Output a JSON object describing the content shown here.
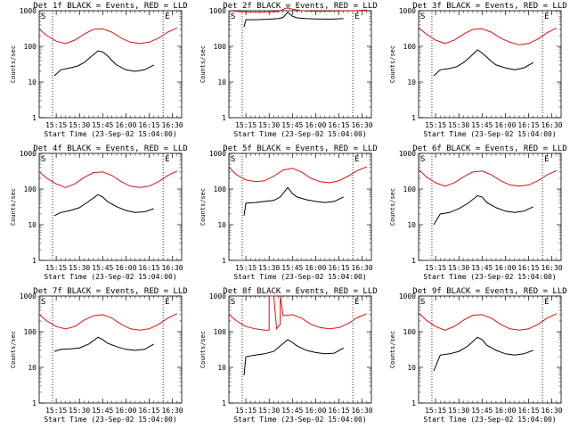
{
  "chart_data": [
    {
      "type": "line",
      "title": "Det 1f BLACK = Events, RED = LLD",
      "ylabel": "Counts/sec",
      "xlabel": "Start Time (23-Sep-02 15:04:00)",
      "x_ticks": [
        "15:15",
        "15:30",
        "15:45",
        "16:00",
        "16:15",
        "16:30"
      ],
      "y_ticks": [
        "1",
        "10",
        "100",
        "1000"
      ],
      "y_scale": "log",
      "ylim": [
        1,
        1000
      ],
      "markers": [
        "S",
        "E"
      ],
      "series": [
        {
          "name": "Events",
          "color": "#000000",
          "x": [
            15.23,
            15.3,
            15.4,
            15.48,
            15.55,
            15.62,
            15.7,
            15.75,
            15.8,
            15.85,
            15.9,
            16.0,
            16.1,
            16.2,
            16.3
          ],
          "y": [
            15,
            22,
            25,
            28,
            35,
            50,
            75,
            70,
            55,
            40,
            30,
            22,
            20,
            22,
            30
          ]
        },
        {
          "name": "LLD",
          "color": "#e01010",
          "x": [
            15.07,
            15.15,
            15.25,
            15.35,
            15.45,
            15.55,
            15.65,
            15.75,
            15.85,
            15.95,
            16.05,
            16.15,
            16.25,
            16.35,
            16.45,
            16.55
          ],
          "y": [
            300,
            200,
            140,
            120,
            150,
            220,
            300,
            310,
            250,
            170,
            130,
            120,
            130,
            170,
            250,
            330
          ]
        }
      ]
    },
    {
      "type": "line",
      "title": "Det 2f BLACK = Events, RED = LLD",
      "ylabel": "Counts/sec",
      "xlabel": "Start Time (23-Sep-02 15:04:00)",
      "x_ticks": [
        "15:15",
        "15:30",
        "15:45",
        "16:00",
        "16:15",
        "16:30"
      ],
      "y_ticks": [
        "1",
        "10",
        "100",
        "1000"
      ],
      "y_scale": "log",
      "ylim": [
        1,
        1000
      ],
      "markers": [
        "S",
        "E"
      ],
      "series": [
        {
          "name": "Events",
          "color": "#000000",
          "x": [
            15.23,
            15.25,
            15.35,
            15.5,
            15.6,
            15.65,
            15.7,
            15.75,
            15.8,
            15.9,
            16.0,
            16.15,
            16.3
          ],
          "y": [
            350,
            560,
            560,
            580,
            600,
            650,
            900,
            700,
            630,
            600,
            590,
            580,
            600
          ]
        },
        {
          "name": "LLD",
          "color": "#e01010",
          "x": [
            15.07,
            15.2,
            15.35,
            15.5,
            15.6,
            15.67,
            15.7,
            15.75,
            15.85,
            16.0,
            16.2,
            16.4,
            16.55
          ],
          "y": [
            1000,
            930,
            900,
            920,
            950,
            1150,
            1200,
            1100,
            1000,
            960,
            980,
            1000,
            1050
          ]
        }
      ]
    },
    {
      "type": "line",
      "title": "Det 3f BLACK = Events, RED = LLD",
      "ylabel": "Counts/sec",
      "xlabel": "Start Time (23-Sep-02 15:04:00)",
      "x_ticks": [
        "15:15",
        "15:30",
        "15:45",
        "16:00",
        "16:15",
        "16:30"
      ],
      "y_ticks": [
        "1",
        "10",
        "100",
        "1000"
      ],
      "y_scale": "log",
      "ylim": [
        1,
        1000
      ],
      "markers": [
        "S",
        "E"
      ],
      "series": [
        {
          "name": "Events",
          "color": "#000000",
          "x": [
            15.23,
            15.3,
            15.4,
            15.48,
            15.55,
            15.62,
            15.7,
            15.75,
            15.8,
            15.85,
            15.9,
            16.0,
            16.1,
            16.2,
            16.3
          ],
          "y": [
            15,
            22,
            24,
            27,
            35,
            50,
            80,
            65,
            50,
            38,
            30,
            25,
            22,
            25,
            35
          ]
        },
        {
          "name": "LLD",
          "color": "#e01010",
          "x": [
            15.07,
            15.15,
            15.25,
            15.35,
            15.45,
            15.55,
            15.65,
            15.75,
            15.85,
            15.95,
            16.05,
            16.15,
            16.25,
            16.35,
            16.45,
            16.55
          ],
          "y": [
            330,
            220,
            150,
            120,
            150,
            220,
            300,
            310,
            250,
            170,
            130,
            110,
            120,
            160,
            240,
            330
          ]
        }
      ]
    },
    {
      "type": "line",
      "title": "Det 4f BLACK = Events, RED = LLD",
      "ylabel": "Counts/sec",
      "xlabel": "Start Time (23-Sep-02 15:04:00)",
      "x_ticks": [
        "15:15",
        "15:30",
        "15:45",
        "16:00",
        "16:15",
        "16:30"
      ],
      "y_ticks": [
        "1",
        "10",
        "100",
        "1000"
      ],
      "y_scale": "log",
      "ylim": [
        1,
        1000
      ],
      "markers": [
        "S",
        "E"
      ],
      "series": [
        {
          "name": "Events",
          "color": "#000000",
          "x": [
            15.23,
            15.3,
            15.4,
            15.5,
            15.6,
            15.7,
            15.75,
            15.8,
            15.9,
            16.0,
            16.1,
            16.2,
            16.3
          ],
          "y": [
            18,
            22,
            25,
            30,
            45,
            70,
            60,
            45,
            32,
            25,
            22,
            23,
            28
          ]
        },
        {
          "name": "LLD",
          "color": "#e01010",
          "x": [
            15.07,
            15.15,
            15.25,
            15.35,
            15.45,
            15.55,
            15.65,
            15.75,
            15.85,
            15.95,
            16.05,
            16.15,
            16.25,
            16.35,
            16.45,
            16.55
          ],
          "y": [
            300,
            200,
            140,
            110,
            140,
            210,
            290,
            300,
            240,
            160,
            120,
            110,
            120,
            160,
            240,
            320
          ]
        }
      ]
    },
    {
      "type": "line",
      "title": "Det 5f BLACK = Events, RED = LLD",
      "ylabel": "Counts/sec",
      "xlabel": "Start Time (23-Sep-02 15:04:00)",
      "x_ticks": [
        "15:15",
        "15:30",
        "15:45",
        "16:00",
        "16:15",
        "16:30"
      ],
      "y_ticks": [
        "1",
        "10",
        "100",
        "1000"
      ],
      "y_scale": "log",
      "ylim": [
        1,
        1000
      ],
      "markers": [
        "S",
        "E"
      ],
      "series": [
        {
          "name": "Events",
          "color": "#000000",
          "x": [
            15.23,
            15.25,
            15.35,
            15.45,
            15.55,
            15.62,
            15.7,
            15.75,
            15.8,
            15.9,
            16.0,
            16.1,
            16.2,
            16.3
          ],
          "y": [
            18,
            40,
            42,
            45,
            48,
            60,
            110,
            75,
            60,
            50,
            45,
            42,
            45,
            60
          ]
        },
        {
          "name": "LLD",
          "color": "#e01010",
          "x": [
            15.07,
            15.15,
            15.25,
            15.35,
            15.45,
            15.55,
            15.65,
            15.75,
            15.85,
            15.95,
            16.05,
            16.15,
            16.25,
            16.35,
            16.45,
            16.55
          ],
          "y": [
            400,
            250,
            180,
            160,
            170,
            230,
            340,
            380,
            300,
            200,
            160,
            150,
            170,
            230,
            330,
            420
          ]
        }
      ]
    },
    {
      "type": "line",
      "title": "Det 6f BLACK = Events, RED = LLD",
      "ylabel": "Counts/sec",
      "xlabel": "Start Time (23-Sep-02 15:04:00)",
      "x_ticks": [
        "15:15",
        "15:30",
        "15:45",
        "16:00",
        "16:15",
        "16:30"
      ],
      "y_ticks": [
        "1",
        "10",
        "100",
        "1000"
      ],
      "y_scale": "log",
      "ylim": [
        1,
        1000
      ],
      "markers": [
        "S",
        "E"
      ],
      "series": [
        {
          "name": "Events",
          "color": "#000000",
          "x": [
            15.23,
            15.3,
            15.4,
            15.5,
            15.6,
            15.7,
            15.75,
            15.8,
            15.9,
            16.0,
            16.1,
            16.2,
            16.3
          ],
          "y": [
            10,
            20,
            22,
            28,
            40,
            65,
            60,
            42,
            30,
            24,
            22,
            24,
            32
          ]
        },
        {
          "name": "LLD",
          "color": "#e01010",
          "x": [
            15.07,
            15.15,
            15.25,
            15.35,
            15.45,
            15.55,
            15.65,
            15.75,
            15.85,
            15.95,
            16.05,
            16.15,
            16.25,
            16.35,
            16.45,
            16.55
          ],
          "y": [
            350,
            220,
            150,
            120,
            150,
            220,
            300,
            320,
            250,
            170,
            130,
            120,
            130,
            170,
            250,
            330
          ]
        }
      ]
    },
    {
      "type": "line",
      "title": "Det 7f BLACK = Events, RED = LLD",
      "ylabel": "Counts/sec",
      "xlabel": "Start Time (23-Sep-02 15:04:00)",
      "x_ticks": [
        "15:15",
        "15:30",
        "15:45",
        "16:00",
        "16:15",
        "16:30"
      ],
      "y_ticks": [
        "1",
        "10",
        "100",
        "1000"
      ],
      "y_scale": "log",
      "ylim": [
        1,
        1000
      ],
      "markers": [
        "S",
        "E"
      ],
      "series": [
        {
          "name": "Events",
          "color": "#000000",
          "x": [
            15.23,
            15.3,
            15.4,
            15.5,
            15.6,
            15.7,
            15.75,
            15.8,
            15.9,
            16.0,
            16.1,
            16.2,
            16.3
          ],
          "y": [
            28,
            32,
            33,
            35,
            45,
            70,
            60,
            48,
            38,
            32,
            30,
            32,
            45
          ]
        },
        {
          "name": "LLD",
          "color": "#e01010",
          "x": [
            15.07,
            15.15,
            15.25,
            15.35,
            15.45,
            15.55,
            15.65,
            15.75,
            15.85,
            15.95,
            16.05,
            16.15,
            16.25,
            16.35,
            16.45,
            16.55
          ],
          "y": [
            300,
            200,
            140,
            120,
            140,
            210,
            280,
            300,
            240,
            160,
            120,
            110,
            120,
            160,
            240,
            320
          ]
        }
      ]
    },
    {
      "type": "line",
      "title": "Det 8f BLACK = Events, RED = LLD",
      "ylabel": "Counts/sec",
      "xlabel": "Start Time (23-Sep-02 15:04:00)",
      "x_ticks": [
        "15:15",
        "15:30",
        "15:45",
        "16:00",
        "16:15",
        "16:30"
      ],
      "y_ticks": [
        "1",
        "10",
        "100",
        "1000"
      ],
      "y_scale": "log",
      "ylim": [
        1,
        1000
      ],
      "markers": [
        "S",
        "E"
      ],
      "series": [
        {
          "name": "Events",
          "color": "#000000",
          "x": [
            15.23,
            15.25,
            15.35,
            15.45,
            15.55,
            15.62,
            15.7,
            15.75,
            15.8,
            15.9,
            16.0,
            16.1,
            16.2,
            16.3
          ],
          "y": [
            6,
            20,
            22,
            24,
            28,
            40,
            60,
            50,
            40,
            30,
            26,
            24,
            25,
            35
          ]
        },
        {
          "name": "LLD",
          "color": "#e01010",
          "x": [
            15.07,
            15.15,
            15.25,
            15.35,
            15.45,
            15.5,
            15.5,
            15.55,
            15.58,
            15.6,
            15.62,
            15.62,
            15.65,
            15.75,
            15.85,
            15.95,
            16.05,
            16.15,
            16.25,
            16.35,
            16.45,
            16.55
          ],
          "y": [
            300,
            200,
            140,
            120,
            110,
            110,
            1000,
            1000,
            120,
            140,
            160,
            1000,
            280,
            300,
            240,
            160,
            130,
            120,
            130,
            170,
            250,
            320
          ]
        }
      ]
    },
    {
      "type": "line",
      "title": "Det 9f BLACK = Events, RED = LLD",
      "ylabel": "Counts/sec",
      "xlabel": "Start Time (23-Sep-02 15:04:00)",
      "x_ticks": [
        "15:15",
        "15:30",
        "15:45",
        "16:00",
        "16:15",
        "16:30"
      ],
      "y_ticks": [
        "1",
        "10",
        "100",
        "1000"
      ],
      "y_scale": "log",
      "ylim": [
        1,
        1000
      ],
      "markers": [
        "S",
        "E"
      ],
      "series": [
        {
          "name": "Events",
          "color": "#000000",
          "x": [
            15.23,
            15.3,
            15.4,
            15.5,
            15.6,
            15.7,
            15.75,
            15.8,
            15.9,
            16.0,
            16.1,
            16.2,
            16.3
          ],
          "y": [
            8,
            22,
            24,
            28,
            40,
            70,
            60,
            42,
            30,
            24,
            22,
            24,
            30
          ]
        },
        {
          "name": "LLD",
          "color": "#e01010",
          "x": [
            15.07,
            15.15,
            15.25,
            15.35,
            15.45,
            15.55,
            15.65,
            15.75,
            15.85,
            15.95,
            16.05,
            16.15,
            16.25,
            16.35,
            16.45,
            16.55
          ],
          "y": [
            330,
            210,
            140,
            110,
            140,
            210,
            290,
            300,
            240,
            160,
            120,
            110,
            120,
            160,
            240,
            320
          ]
        }
      ]
    }
  ]
}
